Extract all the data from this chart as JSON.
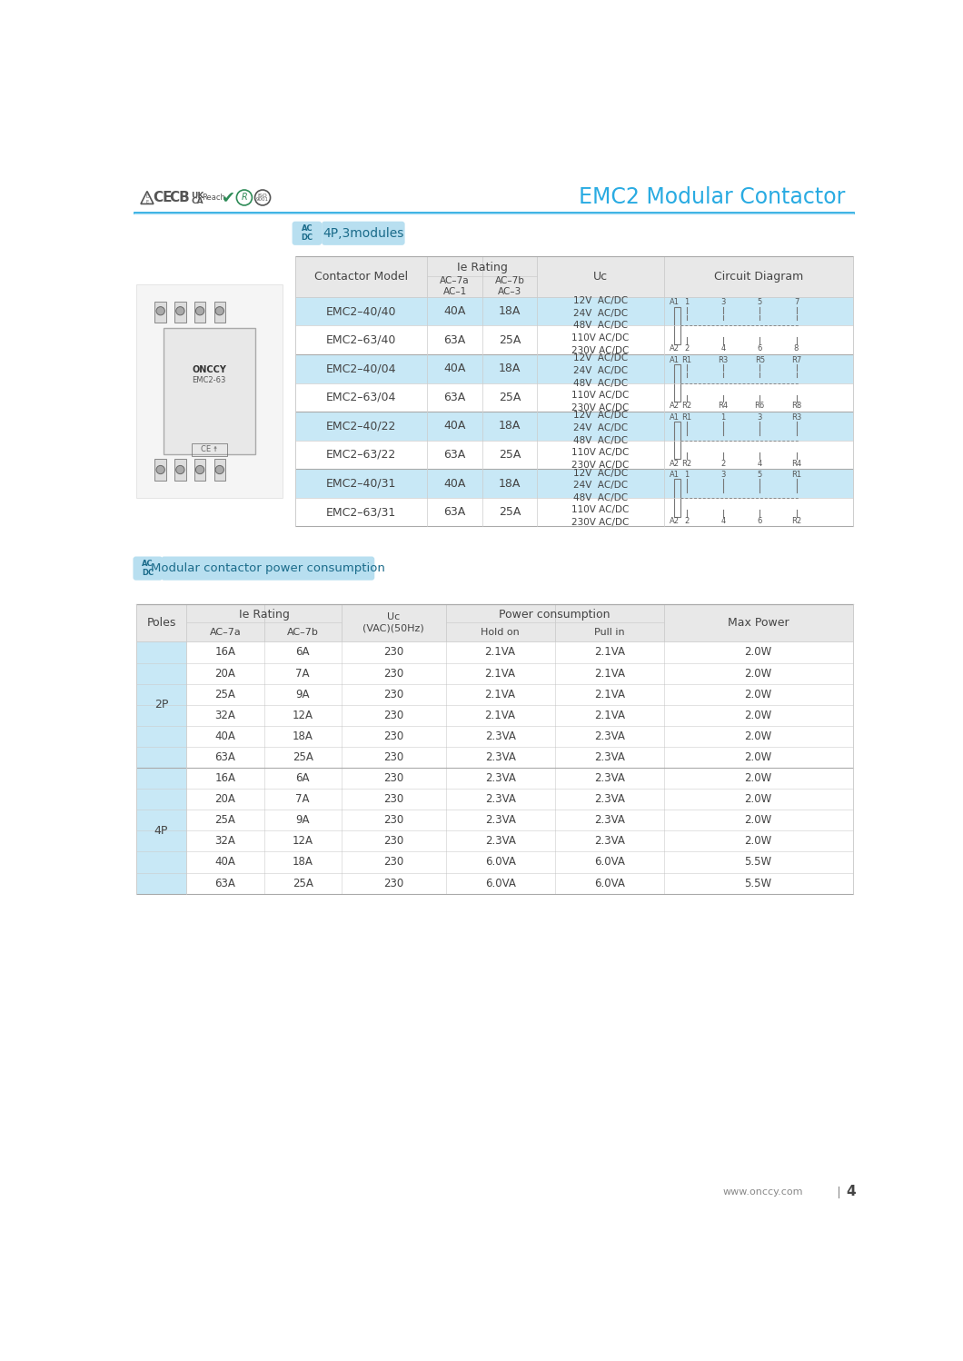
{
  "title": "EMC2 Modular Contactor",
  "title_color": "#29ABE2",
  "header_line_color": "#29ABE2",
  "bg_color": "#ffffff",
  "section1_label": "4P,3modules",
  "table1_rows": [
    [
      "EMC2–40/40",
      "40A",
      "18A",
      "12V  AC/DC\n24V  AC/DC\n48V  AC/DC\n110V AC/DC\n230V AC/DC"
    ],
    [
      "EMC2–63/40",
      "63A",
      "25A",
      ""
    ],
    [
      "EMC2–40/04",
      "40A",
      "18A",
      "12V  AC/DC\n24V  AC/DC\n48V  AC/DC\n110V AC/DC\n230V AC/DC"
    ],
    [
      "EMC2–63/04",
      "63A",
      "25A",
      ""
    ],
    [
      "EMC2–40/22",
      "40A",
      "18A",
      "12V  AC/DC\n24V  AC/DC\n48V  AC/DC\n110V AC/DC\n230V AC/DC"
    ],
    [
      "EMC2–63/22",
      "63A",
      "25A",
      ""
    ],
    [
      "EMC2–40/31",
      "40A",
      "18A",
      "12V  AC/DC\n24V  AC/DC\n48V  AC/DC\n110V AC/DC\n230V AC/DC"
    ],
    [
      "EMC2–63/31",
      "63A",
      "25A",
      ""
    ]
  ],
  "circuit_labels": {
    "40_40": [
      "A1",
      "1",
      "3",
      "5",
      "7",
      "A2",
      "2",
      "4",
      "6",
      "8"
    ],
    "40_04": [
      "A1",
      "R1",
      "R3",
      "R5",
      "R7",
      "A2",
      "R2",
      "R4",
      "R6",
      "R8"
    ],
    "40_22": [
      "A1",
      "R1",
      "1",
      "3",
      "R3",
      "A2",
      "R2",
      "2",
      "4",
      "R4"
    ],
    "40_31": [
      "A1",
      "1",
      "3",
      "5",
      "R1",
      "A2",
      "2",
      "4",
      "6",
      "R2"
    ]
  },
  "section2_label": "Modular contactor power consumption",
  "table2_rows": [
    [
      "2P",
      "16A",
      "6A",
      "230",
      "2.1VA",
      "2.1VA",
      "2.0W"
    ],
    [
      "",
      "20A",
      "7A",
      "230",
      "2.1VA",
      "2.1VA",
      "2.0W"
    ],
    [
      "",
      "25A",
      "9A",
      "230",
      "2.1VA",
      "2.1VA",
      "2.0W"
    ],
    [
      "",
      "32A",
      "12A",
      "230",
      "2.1VA",
      "2.1VA",
      "2.0W"
    ],
    [
      "",
      "40A",
      "18A",
      "230",
      "2.3VA",
      "2.3VA",
      "2.0W"
    ],
    [
      "",
      "63A",
      "25A",
      "230",
      "2.3VA",
      "2.3VA",
      "2.0W"
    ],
    [
      "4P",
      "16A",
      "6A",
      "230",
      "2.3VA",
      "2.3VA",
      "2.0W"
    ],
    [
      "",
      "20A",
      "7A",
      "230",
      "2.3VA",
      "2.3VA",
      "2.0W"
    ],
    [
      "",
      "25A",
      "9A",
      "230",
      "2.3VA",
      "2.3VA",
      "2.0W"
    ],
    [
      "",
      "32A",
      "12A",
      "230",
      "2.3VA",
      "2.3VA",
      "2.0W"
    ],
    [
      "",
      "40A",
      "18A",
      "230",
      "6.0VA",
      "6.0VA",
      "5.5W"
    ],
    [
      "",
      "63A",
      "25A",
      "230",
      "6.0VA",
      "6.0VA",
      "5.5W"
    ]
  ],
  "light_blue": "#B8DFF0",
  "medium_blue": "#29ABE2",
  "dark_text": "#444444",
  "gray_text": "#888888",
  "cell_blue": "#C8E8F6",
  "header_bg": "#E8E8E8",
  "footer_text": "www.onccy.com",
  "footer_page": "4",
  "table_border": "#CCCCCC",
  "table_border_dark": "#AAAAAA"
}
